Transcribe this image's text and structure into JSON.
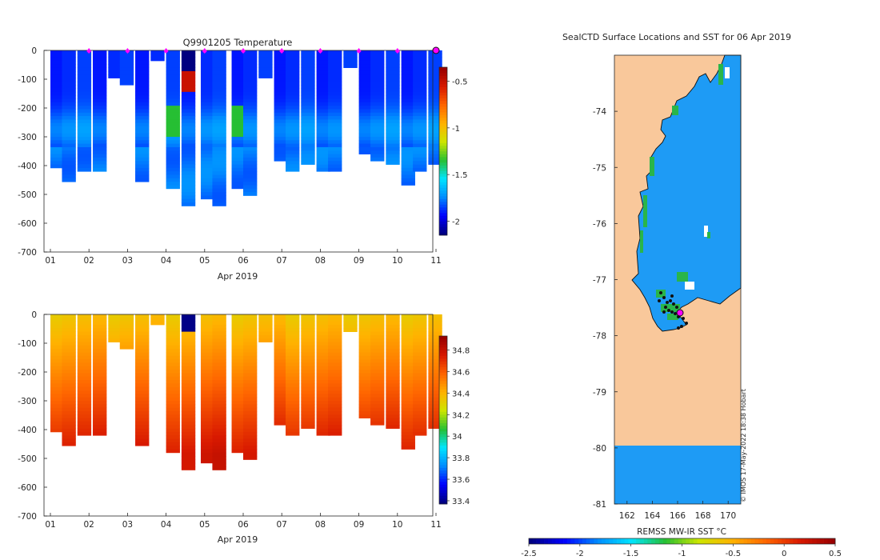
{
  "chart_data": [
    {
      "type": "heatmap",
      "title": "Q9901205  Temperature",
      "xlabel": "Apr 2019",
      "ylabel": "",
      "x_ticks": [
        "01",
        "02",
        "03",
        "04",
        "05",
        "06",
        "07",
        "08",
        "09",
        "10",
        "11"
      ],
      "y_ticks": [
        "0",
        "-100",
        "-200",
        "-300",
        "-400",
        "-500",
        "-600",
        "-700"
      ],
      "xlim": [
        1,
        11
      ],
      "ylim": [
        -700,
        0
      ],
      "colorbar": {
        "ticks": [
          "-0.5",
          "-1",
          "-1.5",
          "-2"
        ],
        "range": [
          -2.15,
          -0.35
        ]
      },
      "profile_marker_days": [
        2,
        3,
        4,
        5,
        6,
        7,
        8,
        9,
        10
      ]
    },
    {
      "type": "heatmap",
      "title": "",
      "xlabel": "Apr 2019",
      "ylabel": "",
      "x_ticks": [
        "01",
        "02",
        "03",
        "04",
        "05",
        "06",
        "07",
        "08",
        "09",
        "10",
        "11"
      ],
      "y_ticks": [
        "0",
        "-100",
        "-200",
        "-300",
        "-400",
        "-500",
        "-600",
        "-700"
      ],
      "xlim": [
        1,
        11
      ],
      "ylim": [
        -700,
        0
      ],
      "colorbar": {
        "ticks": [
          "34.8",
          "34.6",
          "34.4",
          "34.2",
          "34",
          "33.8",
          "33.6",
          "33.4"
        ],
        "range": [
          33.37,
          34.93
        ]
      }
    },
    {
      "type": "heatmap",
      "title": "SealCTD Surface Locations and SST for 06 Apr 2019",
      "x_ticks": [
        "162",
        "164",
        "166",
        "168",
        "170"
      ],
      "y_ticks": [
        "-74",
        "-75",
        "-76",
        "-77",
        "-78",
        "-79",
        "-80",
        "-81"
      ],
      "xlim": [
        161,
        171
      ],
      "ylim": [
        -81,
        -73
      ],
      "colorbar": {
        "label": "REMSS MW-IR SST °C",
        "ticks": [
          "-2.5",
          "-2",
          "-1.5",
          "-1",
          "-0.5",
          "0",
          "0.5"
        ],
        "range": [
          -2.5,
          0.5
        ]
      },
      "credit": "© IMOS 17-May-2022 18:38 Hobart"
    }
  ],
  "colors": {
    "land": "#f9c89b",
    "sea": "#1e9bf5",
    "marker": "#ff00ff"
  }
}
